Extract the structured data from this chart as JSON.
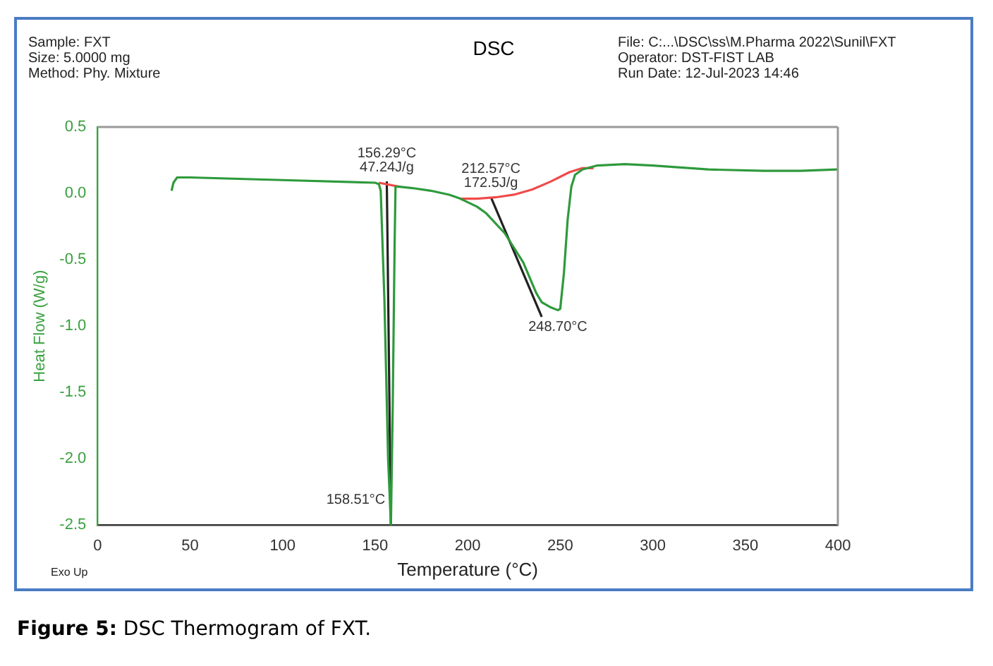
{
  "chart_data": {
    "type": "line",
    "title": "DSC",
    "xlabel": "Temperature (°C)",
    "ylabel": "Heat Flow (W/g)",
    "xlim": [
      0,
      400
    ],
    "xticks": [
      0,
      50,
      100,
      150,
      200,
      250,
      300,
      350,
      400
    ],
    "ylim": [
      -2.5,
      0.5
    ],
    "yticks": [
      0.5,
      {
        "value": 0,
        "label": "0.0"
      },
      -0.5,
      {
        "value": -1,
        "label": "-1.0"
      },
      -1.5,
      {
        "value": -2,
        "label": "-2.0"
      },
      -2.5
    ],
    "marker": "none",
    "line_style": "solid",
    "series": [
      {
        "color": "#2e9a3c",
        "x": [
          40,
          41,
          43,
          50,
          100,
          150,
          152,
          153,
          155,
          157,
          158.51,
          159.5,
          160.5,
          161,
          163,
          170,
          180,
          190,
          196,
          205,
          210,
          220,
          230,
          237,
          240,
          245,
          248.7,
          250,
          252,
          254,
          256,
          258,
          262,
          270,
          285,
          300,
          330,
          360,
          380,
          400
        ],
        "values": [
          0.02,
          0.08,
          0.12,
          0.12,
          0.1,
          0.08,
          0.07,
          0.02,
          -0.8,
          -2.0,
          -2.5,
          -1.6,
          -0.4,
          0.05,
          0.05,
          0.04,
          0.02,
          -0.01,
          -0.04,
          -0.1,
          -0.15,
          -0.3,
          -0.52,
          -0.75,
          -0.82,
          -0.86,
          -0.88,
          -0.87,
          -0.6,
          -0.2,
          0.05,
          0.14,
          0.18,
          0.21,
          0.22,
          0.21,
          0.18,
          0.17,
          0.17,
          0.18
        ]
      },
      {
        "color": "#f04a4a",
        "x": [
          152,
          163
        ],
        "values": [
          0.08,
          0.05
        ]
      },
      {
        "color": "#f04a4a",
        "x": [
          196,
          205,
          215,
          225,
          235,
          245,
          255,
          262,
          268
        ],
        "values": [
          -0.04,
          -0.04,
          -0.03,
          -0.01,
          0.03,
          0.09,
          0.16,
          0.19,
          0.19
        ]
      },
      {
        "color": "#222222",
        "x": [
          156.29,
          158.51
        ],
        "values": [
          0.09,
          -2.5
        ]
      },
      {
        "color": "#222222",
        "x": [
          212.57,
          240
        ],
        "values": [
          -0.03,
          -0.93
        ]
      }
    ],
    "annotations": [
      "Sample: FXT",
      "Size:  5.0000 mg",
      "Method: Phy. Mixture",
      "File: C:...\\DSC\\ss\\M.Pharma 2022\\Sunil\\FXT",
      "Operator: DST-FIST LAB",
      "Run Date: 12-Jul-2023 14:46",
      "Exo Up",
      "Figure 5: DSC Thermogram of FXT.",
      {
        "text": "156.29°C\n47.24J/g",
        "x": 156.29,
        "y": 0.09
      },
      {
        "text": "212.57°C\n172.5J/g",
        "x": 212.57,
        "y": -0.03
      },
      {
        "text": "248.70°C",
        "x": 248.7,
        "y": -0.88
      },
      {
        "text": "158.51°C",
        "x": 158.51,
        "y": -2.5
      }
    ]
  }
}
